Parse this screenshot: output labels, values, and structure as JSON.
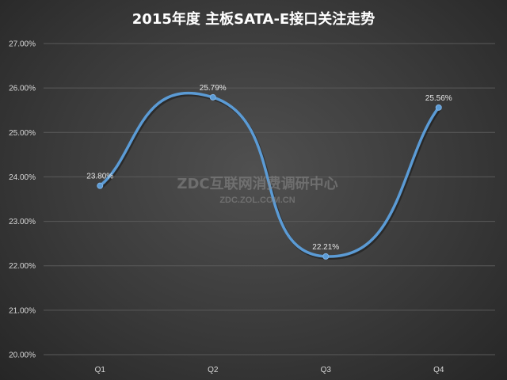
{
  "chart_data": {
    "type": "line",
    "title": "2015年度 主板SATA-E接口关注走势",
    "categories": [
      "Q1",
      "Q2",
      "Q3",
      "Q4"
    ],
    "series": [
      {
        "values": [
          23.8,
          25.79,
          22.21,
          25.56
        ],
        "labels": [
          "23.80%",
          "25.79%",
          "22.21%",
          "25.56%"
        ],
        "color": "#5b9bd5"
      }
    ],
    "ylim": [
      20,
      27
    ],
    "yticks": [
      "20.00%",
      "21.00%",
      "22.00%",
      "23.00%",
      "24.00%",
      "25.00%",
      "26.00%",
      "27.00%"
    ],
    "grid": true,
    "smooth": true
  },
  "watermark": {
    "main": "ZDC互联网消费调研中心",
    "sub": "ZDC.ZOL.COM.CN"
  }
}
